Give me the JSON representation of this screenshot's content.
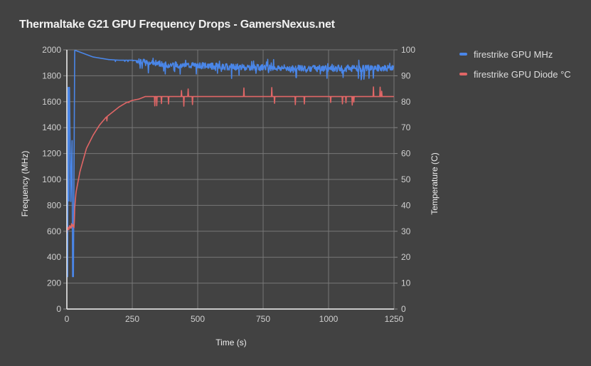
{
  "chart_data": {
    "type": "line",
    "title": "Thermaltake G21 GPU Frequency Drops - GamersNexus.net",
    "xlabel": "Time (s)",
    "ylabel": "Frequency (MHz)",
    "y2label": "Temperature (C)",
    "xlim": [
      0,
      1250
    ],
    "ylim": [
      0,
      2000
    ],
    "y2lim": [
      0,
      100
    ],
    "xticks": [
      "0",
      "250",
      "500",
      "750",
      "1000",
      "1250"
    ],
    "yticks": [
      "0",
      "200",
      "400",
      "600",
      "800",
      "1000",
      "1200",
      "1400",
      "1600",
      "1800",
      "2000"
    ],
    "y2ticks": [
      "0",
      "10",
      "20",
      "30",
      "40",
      "50",
      "60",
      "70",
      "80",
      "90",
      "100"
    ],
    "grid": true,
    "legend_position": "right",
    "series": [
      {
        "name": "firestrike GPU MHz",
        "axis": "left",
        "color": "#4a86e8",
        "x": [
          0,
          3,
          5,
          10,
          15,
          20,
          22,
          25,
          30,
          33,
          40,
          60,
          80,
          100,
          130,
          160,
          200,
          250,
          280,
          300,
          350,
          400,
          500,
          600,
          700,
          800,
          900,
          1000,
          1100,
          1200,
          1250
        ],
        "values": [
          250,
          250,
          1710,
          1710,
          830,
          1300,
          250,
          250,
          1995,
          1995,
          1990,
          1975,
          1960,
          1945,
          1935,
          1925,
          1920,
          1920,
          1915,
          1900,
          1895,
          1885,
          1880,
          1870,
          1865,
          1860,
          1860,
          1855,
          1855,
          1860,
          1855
        ]
      },
      {
        "name": "firestrike GPU Diode °C",
        "axis": "right",
        "color": "#e06666",
        "x": [
          0,
          5,
          10,
          20,
          28,
          30,
          35,
          50,
          75,
          100,
          125,
          150,
          175,
          200,
          225,
          250,
          275,
          300,
          400,
          500,
          600,
          700,
          800,
          900,
          1000,
          1100,
          1250
        ],
        "values": [
          30,
          31,
          32,
          32,
          32,
          39,
          45,
          53,
          62,
          67,
          71,
          74,
          76,
          78,
          79.5,
          80.5,
          81,
          82,
          82,
          82,
          82,
          82,
          82,
          82,
          82,
          82,
          82
        ]
      }
    ]
  },
  "legend": {
    "items": [
      {
        "label": "firestrike GPU MHz",
        "color": "#4a86e8"
      },
      {
        "label": "firestrike GPU Diode °C",
        "color": "#e06666"
      }
    ]
  }
}
